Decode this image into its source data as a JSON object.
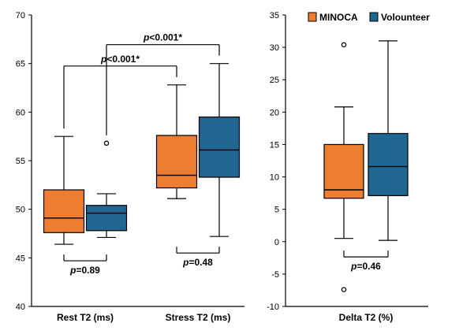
{
  "chart_data": [
    {
      "type": "box",
      "ylim": [
        40,
        70
      ],
      "yticks": [
        40,
        45,
        50,
        55,
        60,
        65,
        70
      ],
      "categories": [
        "Rest T2 (ms)",
        "Stress T2 (ms)"
      ],
      "series": [
        {
          "name": "MINOCA",
          "color": "#ED7D31",
          "boxes": [
            {
              "min": 46.4,
              "q1": 47.6,
              "median": 49.1,
              "q3": 52.0,
              "max": 57.5,
              "outliers": []
            },
            {
              "min": 51.1,
              "q1": 52.2,
              "median": 53.5,
              "q3": 57.6,
              "max": 62.8,
              "outliers": []
            }
          ]
        },
        {
          "name": "Volounteer",
          "color": "#1F6690",
          "boxes": [
            {
              "min": 47.1,
              "q1": 47.8,
              "median": 49.6,
              "q3": 50.4,
              "max": 51.6,
              "outliers": [
                56.8
              ]
            },
            {
              "min": 47.2,
              "q1": 53.3,
              "median": 56.1,
              "q3": 59.5,
              "max": 65.0,
              "outliers": []
            }
          ]
        }
      ],
      "annotations": [
        {
          "label": "p=0.89",
          "p_text": "p",
          "rest": "=0.89",
          "kind": "within",
          "category": 0
        },
        {
          "label": "p=0.48",
          "p_text": "p",
          "rest": "=0.48",
          "kind": "within",
          "category": 1
        },
        {
          "label": "p<0.001*",
          "p_text": "p",
          "rest": "<0.001*",
          "kind": "between",
          "series": 0
        },
        {
          "label": "p<0.001*",
          "p_text": "p",
          "rest": "<0.001*",
          "kind": "between",
          "series": 1
        }
      ]
    },
    {
      "type": "box",
      "ylim": [
        -10,
        35
      ],
      "yticks": [
        -10,
        -5,
        0,
        5,
        10,
        15,
        20,
        25,
        30,
        35
      ],
      "categories": [
        "Delta T2 (%)"
      ],
      "legend": {
        "position": "top-right",
        "entries": [
          "MINOCA",
          "Volounteer"
        ]
      },
      "series": [
        {
          "name": "MINOCA",
          "color": "#ED7D31",
          "boxes": [
            {
              "min": 0.5,
              "q1": 6.7,
              "median": 8.0,
              "q3": 15.0,
              "max": 20.8,
              "outliers": [
                30.4,
                -7.4
              ]
            }
          ]
        },
        {
          "name": "Volounteer",
          "color": "#1F6690",
          "boxes": [
            {
              "min": 0.2,
              "q1": 7.1,
              "median": 11.6,
              "q3": 16.7,
              "max": 31.0,
              "outliers": []
            }
          ]
        }
      ],
      "annotations": [
        {
          "label": "p=0.46",
          "p_text": "p",
          "rest": "=0.46",
          "kind": "within",
          "category": 0
        }
      ]
    }
  ]
}
